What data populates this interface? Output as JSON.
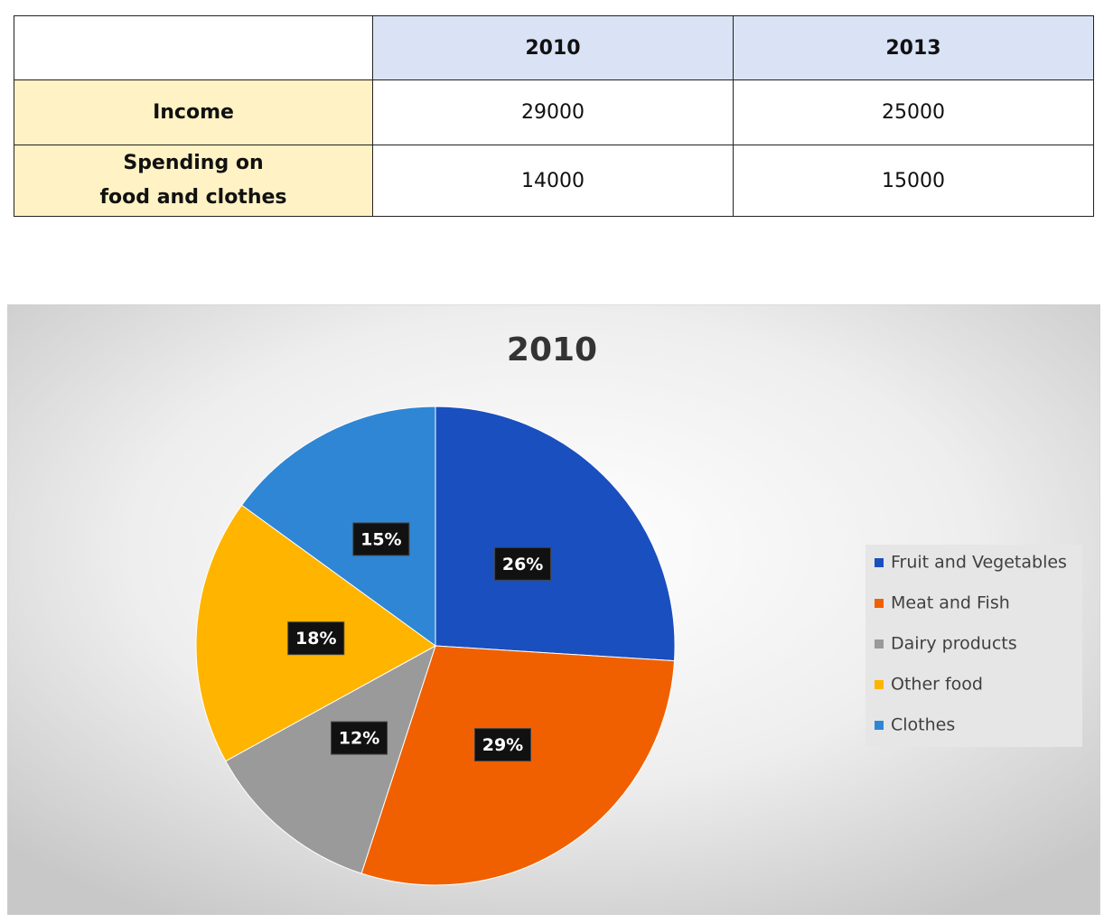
{
  "table": {
    "columns": [
      "2010",
      "2013"
    ],
    "rows": [
      {
        "label": [
          "Income"
        ],
        "values": [
          29000,
          25000
        ]
      },
      {
        "label": [
          "Spending on",
          "food and clothes"
        ],
        "values": [
          14000,
          15000
        ]
      }
    ]
  },
  "chart_data": {
    "type": "pie",
    "title": "2010",
    "categories": [
      "Fruit and Vegetables",
      "Meat and Fish",
      "Dairy products",
      "Other food",
      "Clothes"
    ],
    "values": [
      26,
      29,
      12,
      18,
      15
    ],
    "value_labels": [
      "26%",
      "29%",
      "12%",
      "18%",
      "15%"
    ],
    "colors": [
      "#1a4fbf",
      "#f06000",
      "#9a9a9a",
      "#ffb400",
      "#2f86d4"
    ],
    "legend": "right"
  }
}
